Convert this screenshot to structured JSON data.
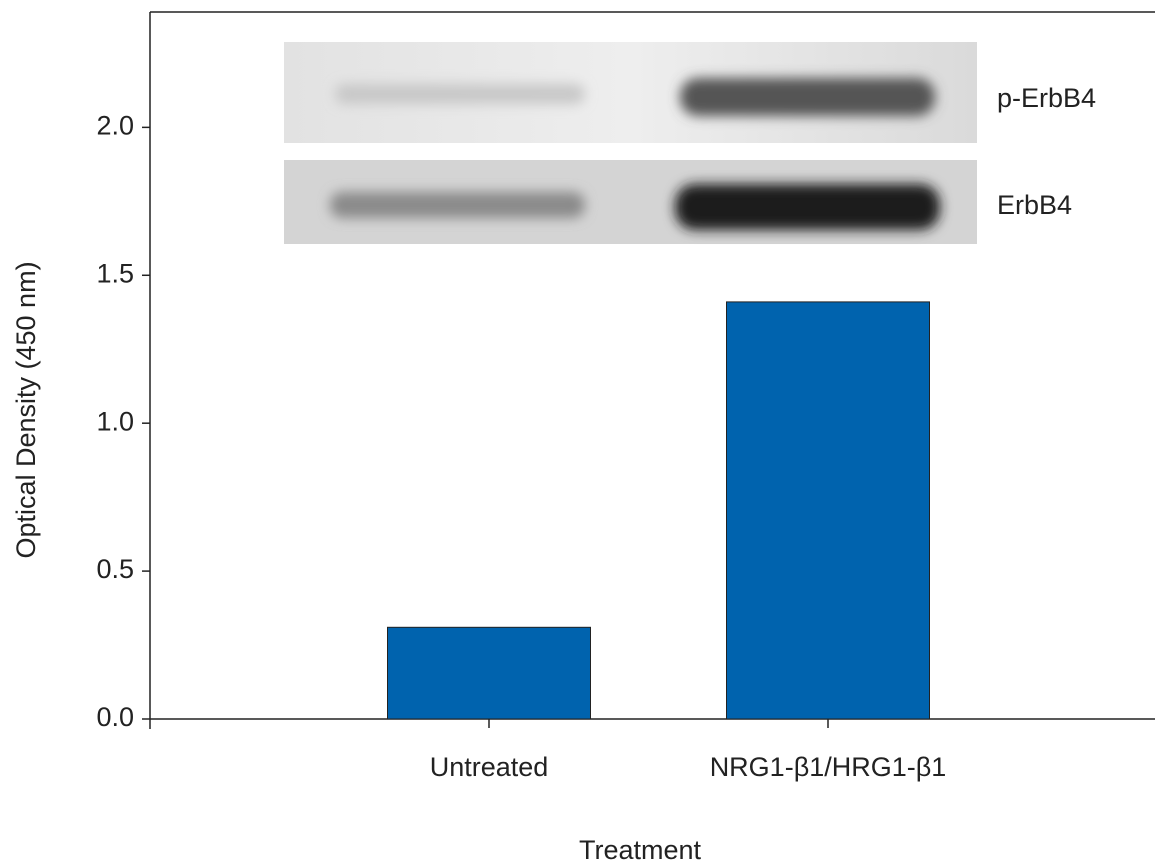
{
  "chart_data": {
    "type": "bar",
    "x_label": "Treatment",
    "y_label": "Optical Density (450 nm)",
    "categories": [
      "Untreated",
      "NRG1-β1/HRG1-β1"
    ],
    "values": [
      0.31,
      1.41
    ],
    "color": "#0063ae",
    "ylim": [
      0,
      2.39
    ],
    "yticks": [
      {
        "value": 0,
        "label": "0.0"
      },
      0.5,
      {
        "value": 1,
        "label": "1.0"
      },
      1.5,
      {
        "value": 2,
        "label": "2.0"
      }
    ],
    "grid": false,
    "annotations": [
      "p-ErbB4",
      "ErbB4"
    ]
  }
}
